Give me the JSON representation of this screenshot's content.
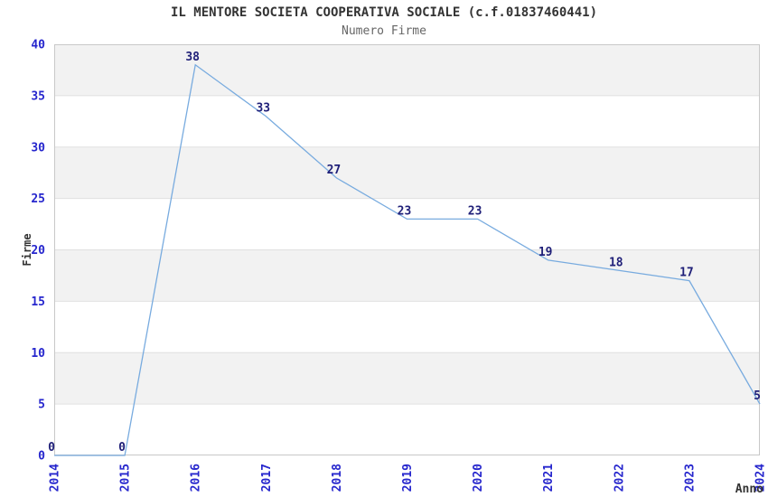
{
  "chart_data": {
    "type": "line",
    "title": "IL MENTORE SOCIETA COOPERATIVA SOCIALE (c.f.01837460441)",
    "subtitle": "Numero Firme",
    "xlabel": "Anno",
    "ylabel": "Firme",
    "x": [
      2014,
      2015,
      2016,
      2017,
      2018,
      2019,
      2020,
      2021,
      2022,
      2023,
      2024
    ],
    "values": [
      0,
      0,
      38,
      33,
      27,
      23,
      23,
      19,
      18,
      17,
      5
    ],
    "data_labels": [
      "0",
      "0",
      "38",
      "33",
      "27",
      "23",
      "23",
      "19",
      "18",
      "17",
      "5"
    ],
    "ylim": [
      0,
      40
    ],
    "ytick_step": 5,
    "yticks": [
      0,
      5,
      10,
      15,
      20,
      25,
      30,
      35,
      40
    ],
    "grid": "horizontal-bands",
    "legend_position": "none",
    "colors": {
      "line": "#78abdf",
      "data_label": "#1f1f78",
      "tick_label": "#2626cd",
      "title": "#333333",
      "subtitle": "#666666",
      "axis_label": "#333333",
      "band": "#f2f2f2",
      "gridline": "#e0e0e0",
      "plot_border": "#c8c8c8",
      "background": "#ffffff"
    }
  }
}
